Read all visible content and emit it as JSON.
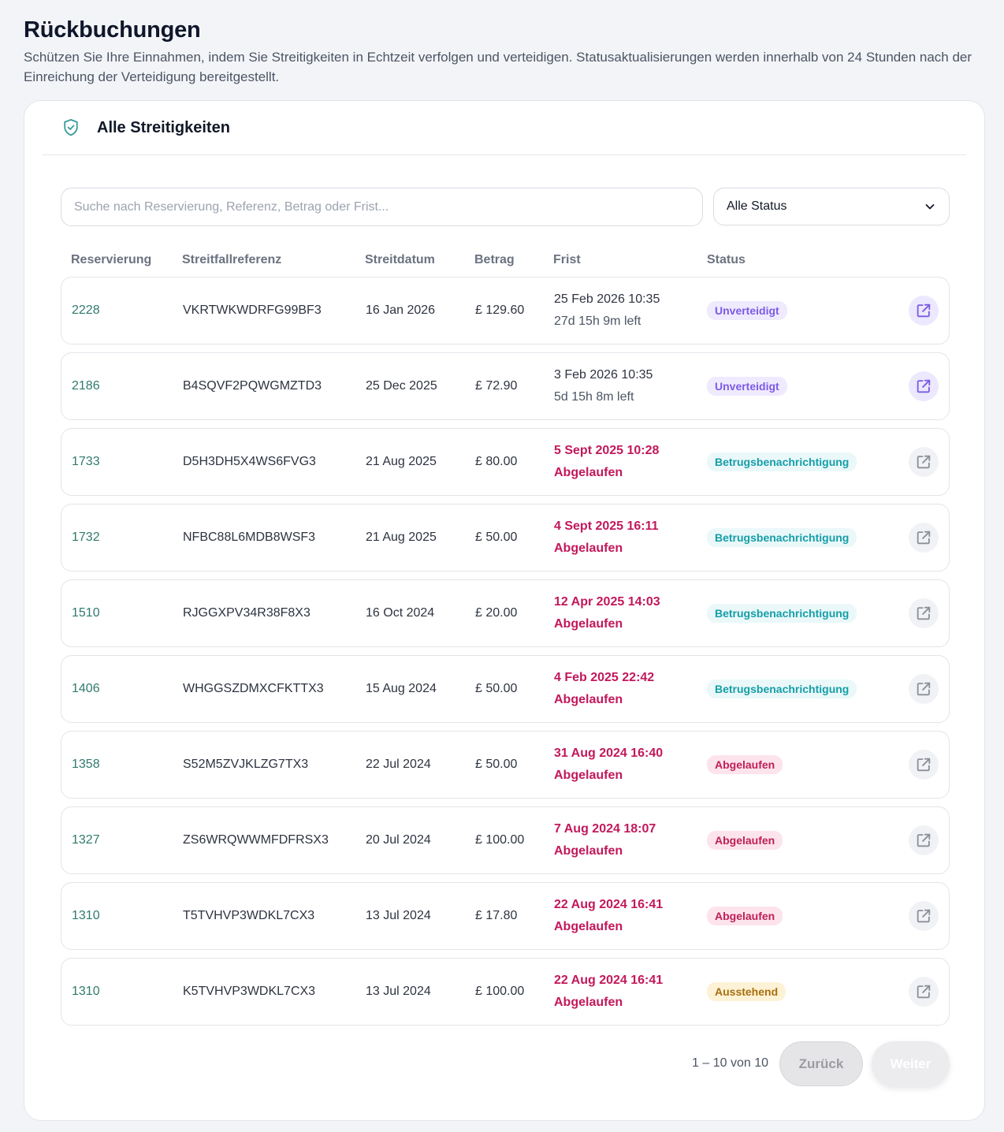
{
  "page": {
    "title": "Rückbuchungen",
    "description": "Schützen Sie Ihre Einnahmen, indem Sie Streitigkeiten in Echtzeit verfolgen und verteidigen. Statusaktualisierungen werden innerhalb von 24 Stunden nach der Einreichung der Verteidigung bereitgestellt."
  },
  "card": {
    "title": "Alle Streitigkeiten",
    "icon": "shield-check-icon"
  },
  "filters": {
    "search_placeholder": "Suche nach Reservierung, Referenz, Betrag oder Frist...",
    "search_value": "",
    "status_selected": "Alle Status"
  },
  "table": {
    "headers": {
      "reservation": "Reservierung",
      "reference": "Streitfallreferenz",
      "date": "Streitdatum",
      "amount": "Betrag",
      "deadline": "Frist",
      "status": "Status"
    },
    "rows": [
      {
        "reservation": "2228",
        "reference": "VKRTWKWDRFG99BF3",
        "date": "16 Jan 2026",
        "amount": "£ 129.60",
        "deadline": "25 Feb 2026 10:35",
        "remaining": "27d 15h 9m left",
        "expired": false,
        "status": "Unverteidigt",
        "status_kind": "undef"
      },
      {
        "reservation": "2186",
        "reference": "B4SQVF2PQWGMZTD3",
        "date": "25 Dec 2025",
        "amount": "£ 72.90",
        "deadline": "3 Feb 2026 10:35",
        "remaining": "5d 15h 8m left",
        "expired": false,
        "status": "Unverteidigt",
        "status_kind": "undef"
      },
      {
        "reservation": "1733",
        "reference": "D5H3DH5X4WS6FVG3",
        "date": "21 Aug 2025",
        "amount": "£ 80.00",
        "deadline": "5 Sept 2025 10:28",
        "remaining": "Abgelaufen",
        "expired": true,
        "status": "Betrugsbenachrichtigung",
        "status_kind": "fraud"
      },
      {
        "reservation": "1732",
        "reference": "NFBC88L6MDB8WSF3",
        "date": "21 Aug 2025",
        "amount": "£ 50.00",
        "deadline": "4 Sept 2025 16:11",
        "remaining": "Abgelaufen",
        "expired": true,
        "status": "Betrugsbenachrichtigung",
        "status_kind": "fraud"
      },
      {
        "reservation": "1510",
        "reference": "RJGGXPV34R38F8X3",
        "date": "16 Oct 2024",
        "amount": "£ 20.00",
        "deadline": "12 Apr 2025 14:03",
        "remaining": "Abgelaufen",
        "expired": true,
        "status": "Betrugsbenachrichtigung",
        "status_kind": "fraud"
      },
      {
        "reservation": "1406",
        "reference": "WHGGSZDMXCFKTTX3",
        "date": "15 Aug 2024",
        "amount": "£ 50.00",
        "deadline": "4 Feb 2025 22:42",
        "remaining": "Abgelaufen",
        "expired": true,
        "status": "Betrugsbenachrichtigung",
        "status_kind": "fraud"
      },
      {
        "reservation": "1358",
        "reference": "S52M5ZVJKLZG7TX3",
        "date": "22 Jul 2024",
        "amount": "£ 50.00",
        "deadline": "31 Aug 2024 16:40",
        "remaining": "Abgelaufen",
        "expired": true,
        "status": "Abgelaufen",
        "status_kind": "expired"
      },
      {
        "reservation": "1327",
        "reference": "ZS6WRQWWMFDFRSX3",
        "date": "20 Jul 2024",
        "amount": "£ 100.00",
        "deadline": "7 Aug 2024 18:07",
        "remaining": "Abgelaufen",
        "expired": true,
        "status": "Abgelaufen",
        "status_kind": "expired"
      },
      {
        "reservation": "1310",
        "reference": "T5TVHVP3WDKL7CX3",
        "date": "13 Jul 2024",
        "amount": "£ 17.80",
        "deadline": "22 Aug 2024 16:41",
        "remaining": "Abgelaufen",
        "expired": true,
        "status": "Abgelaufen",
        "status_kind": "expired"
      },
      {
        "reservation": "1310",
        "reference": "K5TVHVP3WDKL7CX3",
        "date": "13 Jul 2024",
        "amount": "£ 100.00",
        "deadline": "22 Aug 2024 16:41",
        "remaining": "Abgelaufen",
        "expired": true,
        "status": "Ausstehend",
        "status_kind": "pending"
      }
    ]
  },
  "pagination": {
    "info": "1 – 10 von 10",
    "prev_label": "Zurück",
    "next_label": "Weiter"
  },
  "colors": {
    "accent": "#2f7a6d",
    "expired": "#c2185b",
    "undefended": "#7c5be6",
    "fraud": "#159ea8",
    "pending": "#a6700d"
  }
}
